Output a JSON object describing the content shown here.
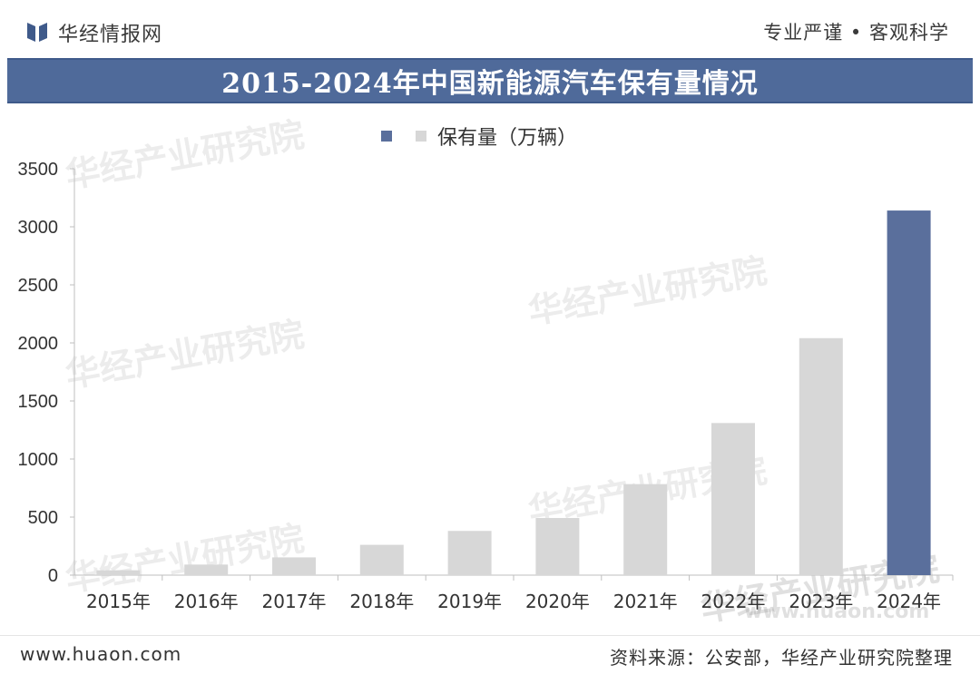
{
  "header": {
    "brand": "华经情报网",
    "slogan": "专业严谨 • 客观科学",
    "title": "2015-2024年中国新能源汽车保有量情况"
  },
  "legend": {
    "label": "保有量（万辆）"
  },
  "footer": {
    "website": "www.huaon.com",
    "source": "资料来源：公安部，华经产业研究院整理"
  },
  "watermark": {
    "text": "华经产业研究院",
    "url": "www.huaon.com"
  },
  "colors": {
    "title_bg": "#4f6a9a",
    "bar_gray": "#d7d7d7",
    "bar_highlight": "#5a6f9c"
  },
  "chart_data": {
    "type": "bar",
    "categories": [
      "2015年",
      "2016年",
      "2017年",
      "2018年",
      "2019年",
      "2020年",
      "2021年",
      "2022年",
      "2023年",
      "2024年"
    ],
    "series": [
      {
        "name": "保有量（万辆）",
        "values": [
          42,
          91,
          153,
          261,
          381,
          492,
          784,
          1310,
          2041,
          3140
        ]
      }
    ],
    "highlight_index": 9,
    "ylim": [
      0,
      3500
    ],
    "yticks": [
      0,
      500,
      1000,
      1500,
      2000,
      2500,
      3000,
      3500
    ],
    "grid": false,
    "legend_position": "top"
  }
}
